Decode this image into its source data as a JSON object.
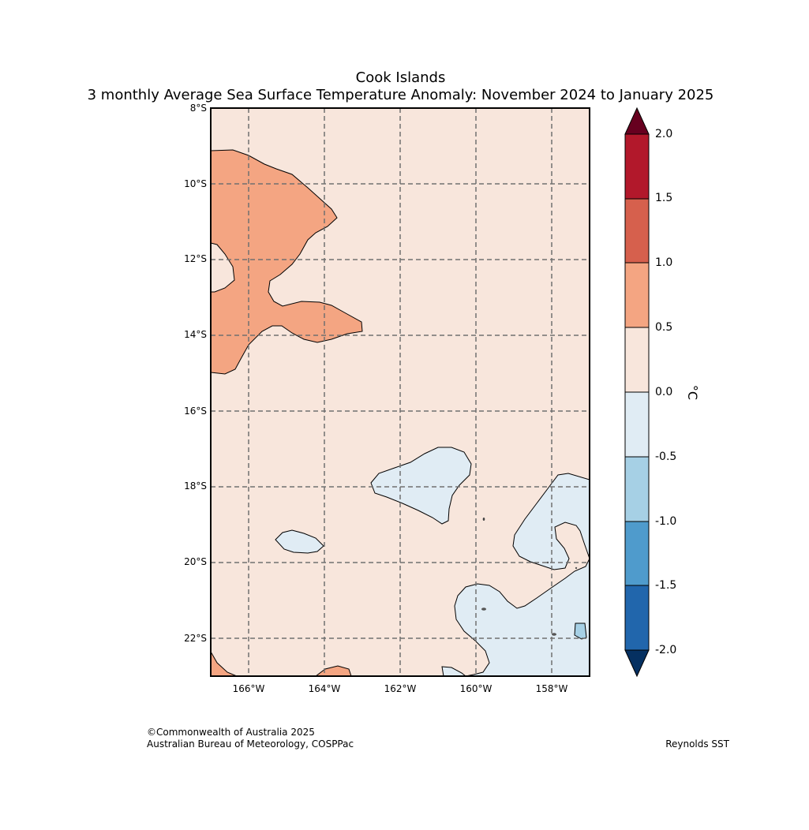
{
  "map": {
    "title": "Cook Islands",
    "subtitle": "3 monthly Average Sea Surface Temperature Anomaly: November 2024 to January 2025",
    "latitude_labels": [
      "8°S",
      "10°S",
      "12°S",
      "14°S",
      "16°S",
      "18°S",
      "20°S",
      "22°S"
    ],
    "longitude_labels": [
      "166°W",
      "164°W",
      "162°W",
      "160°W",
      "158°W"
    ],
    "colorbar": {
      "ticks": [
        "2.0",
        "1.5",
        "1.0",
        "0.5",
        "0.0",
        "-0.5",
        "-1.0",
        "-1.5",
        "-2.0"
      ],
      "unit": "°C",
      "colors": {
        "above_2": "#67001f",
        "1.5_to_2": "#b2182b",
        "1_to_1.5": "#d6604d",
        "0.5_to_1": "#f4a582",
        "0_to_0.5": "#f8e6dc",
        "-0.5_to_0": "#e0ecf4",
        "-1_to_-0.5": "#a6d0e5",
        "-1.5_to_-1": "#4f9bcc",
        "-2_to_-1.5": "#2166ac",
        "below_-2": "#053061"
      }
    }
  },
  "footer": {
    "copyright": "©Commonwealth of Australia 2025",
    "agency": "Australian Bureau of Meteorology, COSPPac",
    "source": "Reynolds SST"
  }
}
